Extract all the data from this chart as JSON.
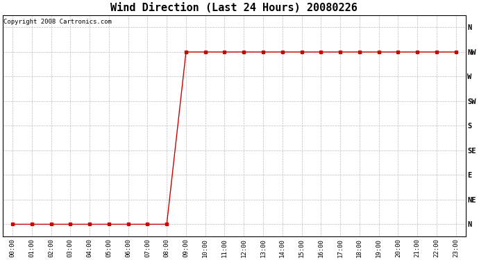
{
  "title": "Wind Direction (Last 24 Hours) 20080226",
  "copyright": "Copyright 2008 Cartronics.com",
  "x_labels": [
    "00:00",
    "01:00",
    "02:00",
    "03:00",
    "04:00",
    "05:00",
    "06:00",
    "07:00",
    "08:00",
    "09:00",
    "10:00",
    "11:00",
    "12:00",
    "13:00",
    "14:00",
    "15:00",
    "16:00",
    "17:00",
    "18:00",
    "19:00",
    "20:00",
    "21:00",
    "22:00",
    "23:00"
  ],
  "y_labels": [
    "N",
    "NE",
    "E",
    "SE",
    "S",
    "SW",
    "W",
    "NW",
    "N"
  ],
  "y_values": [
    0,
    1,
    2,
    3,
    4,
    5,
    6,
    7,
    8
  ],
  "data_x": [
    0,
    1,
    2,
    3,
    4,
    5,
    6,
    7,
    8,
    9,
    10,
    11,
    12,
    13,
    14,
    15,
    16,
    17,
    18,
    19,
    20,
    21,
    22,
    23
  ],
  "data_y": [
    0,
    0,
    0,
    0,
    0,
    0,
    0,
    0,
    0,
    7,
    7,
    7,
    7,
    7,
    7,
    7,
    7,
    7,
    7,
    7,
    7,
    7,
    7,
    7
  ],
  "line_color": "#cc0000",
  "marker": "s",
  "marker_size": 2.5,
  "bg_color": "#ffffff",
  "grid_color": "#bbbbbb",
  "title_fontsize": 11,
  "copyright_fontsize": 6.5,
  "tick_fontsize": 6.5,
  "ytick_fontsize": 7.5
}
